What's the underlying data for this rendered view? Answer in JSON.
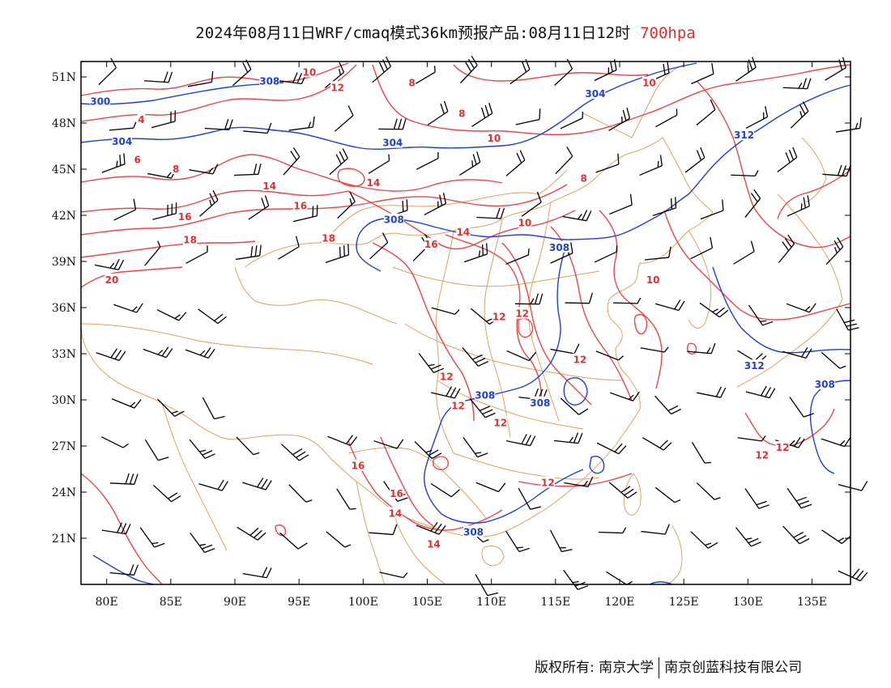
{
  "title": {
    "main": "2024年08月11日WRF/cmaq模式36km预报产品:08月11日12时",
    "level": "700hpa",
    "level_color": "#e03030"
  },
  "axes": {
    "lon_labels": [
      "80E",
      "85E",
      "90E",
      "95E",
      "100E",
      "105E",
      "110E",
      "115E",
      "120E",
      "125E",
      "130E",
      "135E"
    ],
    "lat_labels": [
      "51N",
      "48N",
      "45N",
      "42N",
      "39N",
      "36N",
      "33N",
      "30N",
      "27N",
      "24N",
      "21N"
    ],
    "lon_values": [
      80,
      85,
      90,
      95,
      100,
      105,
      110,
      115,
      120,
      125,
      130,
      135
    ],
    "lat_values": [
      51,
      48,
      45,
      42,
      39,
      36,
      33,
      30,
      27,
      24,
      21
    ],
    "lon_range": [
      78,
      138
    ],
    "lat_range": [
      18,
      52
    ]
  },
  "colors": {
    "temperature_contour": "#e8474a",
    "geopotential_contour": "#1f3fd6",
    "boundary": "#e0a060",
    "wind_barb": "#000000"
  },
  "temperature_labels": [
    {
      "text": "10",
      "lon": 95.8,
      "lat": 51.3
    },
    {
      "text": "12",
      "lon": 98.0,
      "lat": 50.3
    },
    {
      "text": "8",
      "lon": 103.8,
      "lat": 50.6
    },
    {
      "text": "8",
      "lon": 107.7,
      "lat": 48.6
    },
    {
      "text": "10",
      "lon": 110.2,
      "lat": 47.0
    },
    {
      "text": "10",
      "lon": 122.3,
      "lat": 50.6
    },
    {
      "text": "4",
      "lon": 82.7,
      "lat": 48.2
    },
    {
      "text": "6",
      "lon": 82.4,
      "lat": 45.6
    },
    {
      "text": "8",
      "lon": 85.4,
      "lat": 45.0
    },
    {
      "text": "14",
      "lon": 92.7,
      "lat": 43.9
    },
    {
      "text": "14",
      "lon": 100.8,
      "lat": 44.1
    },
    {
      "text": "16",
      "lon": 95.1,
      "lat": 42.6
    },
    {
      "text": "16",
      "lon": 86.1,
      "lat": 41.9
    },
    {
      "text": "18",
      "lon": 86.5,
      "lat": 40.4
    },
    {
      "text": "18",
      "lon": 97.3,
      "lat": 40.5
    },
    {
      "text": "16",
      "lon": 105.3,
      "lat": 40.1
    },
    {
      "text": "14",
      "lon": 107.8,
      "lat": 40.9
    },
    {
      "text": "10",
      "lon": 112.6,
      "lat": 41.5
    },
    {
      "text": "8",
      "lon": 117.2,
      "lat": 44.4
    },
    {
      "text": "10",
      "lon": 122.6,
      "lat": 37.8
    },
    {
      "text": "20",
      "lon": 80.4,
      "lat": 37.8
    },
    {
      "text": "12",
      "lon": 110.6,
      "lat": 35.4
    },
    {
      "text": "12",
      "lon": 112.4,
      "lat": 35.6
    },
    {
      "text": "12",
      "lon": 116.9,
      "lat": 32.6
    },
    {
      "text": "12",
      "lon": 106.5,
      "lat": 31.5
    },
    {
      "text": "12",
      "lon": 107.4,
      "lat": 29.6
    },
    {
      "text": "12",
      "lon": 110.7,
      "lat": 28.5
    },
    {
      "text": "16",
      "lon": 99.6,
      "lat": 25.7
    },
    {
      "text": "16",
      "lon": 102.6,
      "lat": 23.9
    },
    {
      "text": "14",
      "lon": 102.5,
      "lat": 22.6
    },
    {
      "text": "14",
      "lon": 105.5,
      "lat": 20.6
    },
    {
      "text": "12",
      "lon": 114.4,
      "lat": 24.6
    },
    {
      "text": "12",
      "lon": 131.1,
      "lat": 26.4
    },
    {
      "text": "12",
      "lon": 132.7,
      "lat": 26.9
    }
  ],
  "height_labels": [
    {
      "text": "308",
      "lon": 92.7,
      "lat": 50.7
    },
    {
      "text": "300",
      "lon": 79.5,
      "lat": 49.4
    },
    {
      "text": "304",
      "lon": 81.2,
      "lat": 46.8
    },
    {
      "text": "304",
      "lon": 102.3,
      "lat": 46.7
    },
    {
      "text": "304",
      "lon": 118.1,
      "lat": 49.9
    },
    {
      "text": "312",
      "lon": 129.7,
      "lat": 47.2
    },
    {
      "text": "308",
      "lon": 102.4,
      "lat": 41.7
    },
    {
      "text": "308",
      "lon": 115.3,
      "lat": 39.9
    },
    {
      "text": "312",
      "lon": 130.5,
      "lat": 32.2
    },
    {
      "text": "308",
      "lon": 109.5,
      "lat": 30.3
    },
    {
      "text": "308",
      "lon": 113.8,
      "lat": 29.8
    },
    {
      "text": "308",
      "lon": 136.0,
      "lat": 31.0
    },
    {
      "text": "308",
      "lon": 108.6,
      "lat": 21.4
    }
  ],
  "copyright": {
    "left": "版权所有: 南京大学",
    "right": "南京创蓝科技有限公司"
  }
}
